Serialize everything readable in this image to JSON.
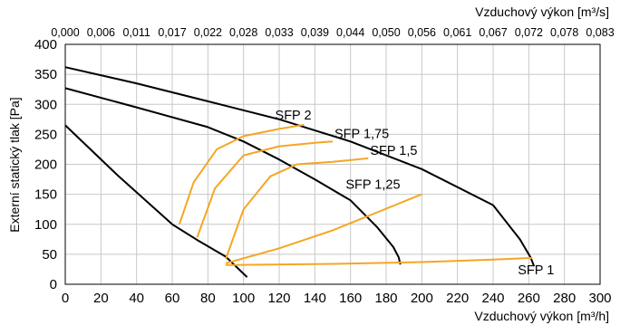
{
  "chart_data": {
    "type": "line",
    "xlabel": "Vzduchový výkon [m³/h]",
    "x2label": "Vzduchový výkon [m³/s]",
    "ylabel": "Externí statický tlak [Pa]",
    "xlim": [
      0,
      300
    ],
    "ylim": [
      0,
      400
    ],
    "grid": true,
    "x_ticks": [
      0,
      20,
      40,
      60,
      80,
      100,
      120,
      140,
      160,
      180,
      200,
      220,
      240,
      260,
      280,
      300
    ],
    "y_ticks": [
      0,
      50,
      100,
      150,
      200,
      250,
      300,
      350,
      400
    ],
    "x2_ticks": [
      {
        "x": 0,
        "label": "0,000"
      },
      {
        "x": 20,
        "label": "0,006"
      },
      {
        "x": 40,
        "label": "0,011"
      },
      {
        "x": 60,
        "label": "0,017"
      },
      {
        "x": 80,
        "label": "0,022"
      },
      {
        "x": 100,
        "label": "0,028"
      },
      {
        "x": 120,
        "label": "0,033"
      },
      {
        "x": 140,
        "label": "0,039"
      },
      {
        "x": 160,
        "label": "0,044"
      },
      {
        "x": 180,
        "label": "0,050"
      },
      {
        "x": 200,
        "label": "0,056"
      },
      {
        "x": 220,
        "label": "0,061"
      },
      {
        "x": 240,
        "label": "0,067"
      },
      {
        "x": 260,
        "label": "0,072"
      },
      {
        "x": 280,
        "label": "0,078"
      },
      {
        "x": 300,
        "label": "0,083"
      }
    ],
    "colors": {
      "fan_curves": "#000000",
      "sfp_curves": "#f5a623",
      "grid": "#c8c8c8"
    },
    "fan_curves": [
      {
        "points": [
          [
            0,
            362
          ],
          [
            40,
            335
          ],
          [
            80,
            305
          ],
          [
            120,
            275
          ],
          [
            160,
            238
          ],
          [
            200,
            192
          ],
          [
            240,
            132
          ],
          [
            255,
            75
          ],
          [
            261,
            45
          ],
          [
            263,
            30
          ]
        ]
      },
      {
        "points": [
          [
            0,
            327
          ],
          [
            40,
            295
          ],
          [
            80,
            262
          ],
          [
            100,
            238
          ],
          [
            120,
            208
          ],
          [
            140,
            175
          ],
          [
            160,
            140
          ],
          [
            175,
            95
          ],
          [
            184,
            62
          ],
          [
            187,
            45
          ],
          [
            188,
            33
          ]
        ]
      },
      {
        "points": [
          [
            0,
            265
          ],
          [
            30,
            180
          ],
          [
            60,
            100
          ],
          [
            75,
            72
          ],
          [
            90,
            46
          ],
          [
            102,
            12
          ]
        ]
      }
    ],
    "sfp_curves": [
      {
        "label": "SFP 2",
        "points": [
          [
            64,
            100
          ],
          [
            72,
            170
          ],
          [
            85,
            225
          ],
          [
            100,
            247
          ],
          [
            120,
            259
          ],
          [
            134,
            266
          ]
        ]
      },
      {
        "label": "SFP 1,75",
        "points": [
          [
            74,
            78
          ],
          [
            84,
            160
          ],
          [
            100,
            215
          ],
          [
            120,
            230
          ],
          [
            140,
            236
          ],
          [
            150,
            238
          ]
        ]
      },
      {
        "label": "SFP 1,5",
        "points": [
          [
            90,
            42
          ],
          [
            100,
            125
          ],
          [
            115,
            180
          ],
          [
            130,
            200
          ],
          [
            150,
            204
          ],
          [
            170,
            210
          ]
        ]
      },
      {
        "label": "SFP 1,25",
        "points": [
          [
            90,
            35
          ],
          [
            120,
            60
          ],
          [
            150,
            90
          ],
          [
            175,
            120
          ],
          [
            200,
            150
          ]
        ]
      },
      {
        "label": "SFP 1",
        "points": [
          [
            90,
            32
          ],
          [
            150,
            34
          ],
          [
            200,
            37
          ],
          [
            240,
            41
          ],
          [
            262,
            44
          ]
        ]
      }
    ]
  }
}
